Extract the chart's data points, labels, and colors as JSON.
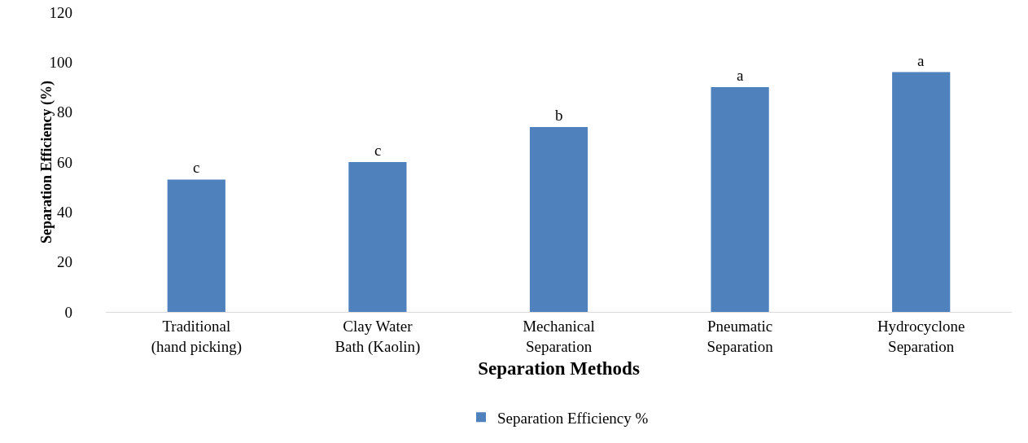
{
  "chart_data": {
    "type": "bar",
    "xlabel": "Separation Methods",
    "ylabel": "Separation Efficiency (%)",
    "categories": [
      "Traditional (hand picking)",
      "Clay Water Bath (Kaolin)",
      "Mechanical Separation",
      "Pneumatic Separation",
      "Hydrocyclone Separation"
    ],
    "series": [
      {
        "name": "Separation Efficiency %",
        "color": "#4f81bd",
        "values": [
          53,
          60,
          74,
          90,
          96
        ]
      }
    ],
    "ylim": [
      0,
      120
    ],
    "yticks": [
      0,
      20,
      40,
      60,
      80,
      100,
      120
    ],
    "grid": false,
    "legend": "bottom",
    "annotations": [
      {
        "text": "c",
        "x": "Traditional (hand picking)",
        "y": 53
      },
      {
        "text": "c",
        "x": "Clay Water Bath (Kaolin)",
        "y": 60
      },
      {
        "text": "b",
        "x": "Mechanical Separation",
        "y": 74
      },
      {
        "text": "a",
        "x": "Pneumatic Separation",
        "y": 90
      },
      {
        "text": "a",
        "x": "Hydrocyclone Separation",
        "y": 96
      }
    ]
  }
}
